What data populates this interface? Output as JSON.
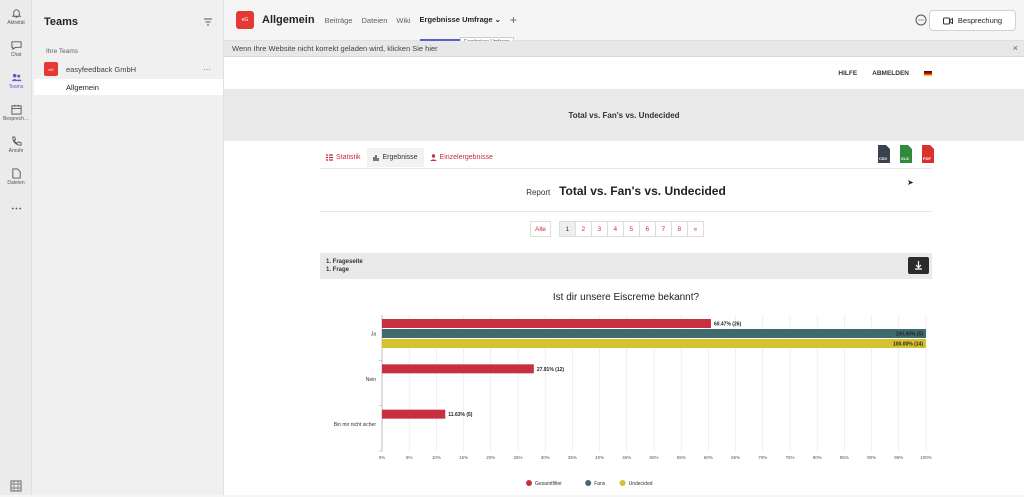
{
  "rail": [
    {
      "label": "Aktivität",
      "icon": "bell-icon"
    },
    {
      "label": "Chat",
      "icon": "chat-icon"
    },
    {
      "label": "Teams",
      "icon": "teams-icon"
    },
    {
      "label": "Besprech…",
      "icon": "calendar-icon"
    },
    {
      "label": "Anrufe",
      "icon": "phone-icon"
    },
    {
      "label": "Dateien",
      "icon": "file-icon"
    },
    {
      "label": "...",
      "icon": "more-icon"
    }
  ],
  "teams_panel": {
    "title": "Teams",
    "section": "Ihre Teams",
    "team_logo_text": "eG",
    "team_name": "easyfeedback GmbH",
    "more": "···",
    "channel": "Allgemein"
  },
  "topbar": {
    "logo_text": "eG",
    "channel_title": "Allgemein",
    "tabs": [
      "Beiträge",
      "Dateien",
      "Wiki",
      "Ergebnisse Umfrage ⌄"
    ],
    "add_tab": "+",
    "tooltip": "Ergebnisse Umfrage",
    "meeting_label": "Besprechung"
  },
  "notice": {
    "text": "Wenn Ihre Website nicht korrekt geladen wird, klicken Sie hier",
    "close": "×"
  },
  "site": {
    "nav": {
      "help": "HILFE",
      "logout": "ABMELDEN"
    },
    "banner": "Total vs. Fan's vs. Undecided",
    "tabs": {
      "stats": "Statistik",
      "results": "Ergebnisse",
      "single": "Einzelergebnisse"
    },
    "exports": [
      "CSV",
      "XLS",
      "PDF"
    ],
    "report_label": "Report",
    "report_title": "Total vs. Fan's vs. Undecided",
    "pager": {
      "all": "Alle",
      "pages": [
        "1",
        "2",
        "3",
        "4",
        "5",
        "6",
        "7",
        "8",
        "»"
      ]
    },
    "question_meta": {
      "line1": "1. Frageseite",
      "line2": "1. Frage"
    },
    "question": "Ist dir unsere Eiscreme bekannt?"
  },
  "chart_data": {
    "type": "bar",
    "orientation": "horizontal",
    "title": "Ist dir unsere Eiscreme bekannt?",
    "categories": [
      "Ja",
      "Nein",
      "Bin mir nicht sicher"
    ],
    "series": [
      {
        "name": "Gesamtfilter",
        "color": "#c8303f",
        "values": [
          60.47,
          27.91,
          11.63
        ],
        "labels": [
          "60.47% (26)",
          "27.91% (12)",
          "11.63% (5)"
        ]
      },
      {
        "name": "Fans",
        "color": "#3f6b6f",
        "values": [
          100,
          null,
          null
        ],
        "labels": [
          "100.00% (5)",
          null,
          null
        ]
      },
      {
        "name": "Undecided",
        "color": "#d4c22f",
        "values": [
          100,
          null,
          null
        ],
        "labels": [
          "100.00% (14)",
          null,
          null
        ]
      }
    ],
    "xlim": [
      0,
      100
    ],
    "xticks": [
      "0%",
      "5%",
      "10%",
      "15%",
      "20%",
      "25%",
      "30%",
      "35%",
      "40%",
      "45%",
      "50%",
      "55%",
      "60%",
      "65%",
      "70%",
      "75%",
      "80%",
      "85%",
      "90%",
      "95%",
      "100%"
    ],
    "grid": true,
    "legend": "bottom"
  }
}
